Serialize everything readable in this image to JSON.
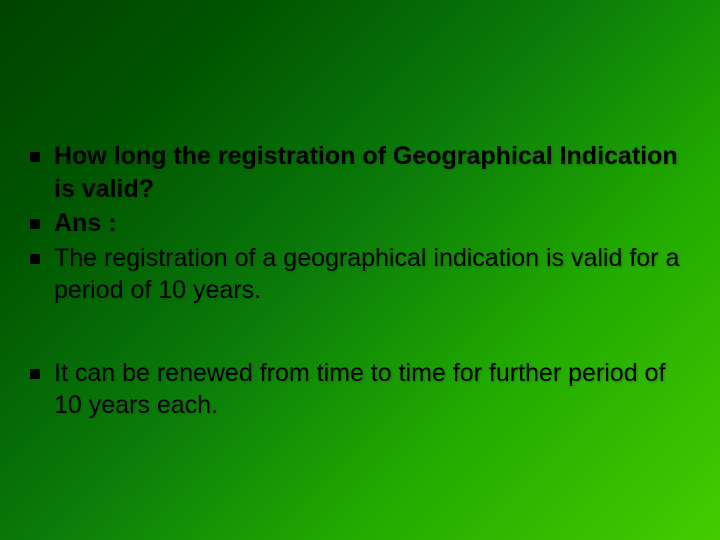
{
  "slide": {
    "background_gradient": [
      "#004400",
      "#005500",
      "#0a7a0a",
      "#22aa00",
      "#44cc00"
    ],
    "bullet_color": "#000000",
    "text_color": "#000000",
    "font_size": 25,
    "bullet_size": 10,
    "groups": [
      {
        "items": [
          {
            "text": "How long the registration of Geographical Indication is valid?",
            "bold": true
          },
          {
            "text": "Ans :",
            "bold": true
          },
          {
            "text": "The registration of a geographical indication is valid for a period of 10 years.",
            "bold": false
          }
        ]
      },
      {
        "items": [
          {
            "text": "It can be renewed from time to time for further period of 10 years each.",
            "bold": false
          }
        ]
      }
    ]
  }
}
